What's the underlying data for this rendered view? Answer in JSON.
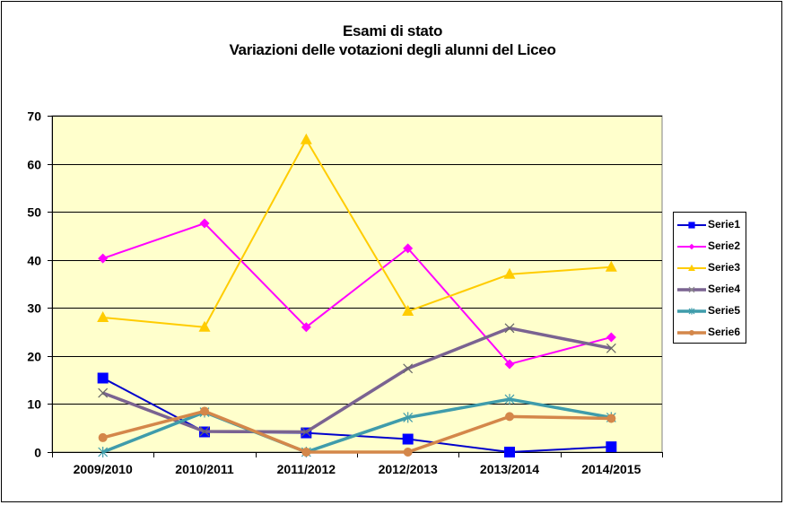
{
  "chart": {
    "title_line1": "Esami di stato",
    "title_line2": "Variazioni delle votazioni degli alunni del Liceo",
    "plot_background": "#FFFFCC",
    "y_ticks": [
      "0",
      "10",
      "20",
      "30",
      "40",
      "50",
      "60",
      "70"
    ],
    "x_ticks": [
      "2009/2010",
      "2010/2011",
      "2011/2012",
      "2012/2013",
      "2013/2014",
      "2014/2015"
    ]
  },
  "legend": {
    "items": [
      {
        "label": "Serie1",
        "color": "#0000FF"
      },
      {
        "label": "Serie2",
        "color": "#FF00FF"
      },
      {
        "label": "Serie3",
        "color": "#FFCC00"
      },
      {
        "label": "Serie4",
        "color": "#7A6391"
      },
      {
        "label": "Serie5",
        "color": "#3F9CAB"
      },
      {
        "label": "Serie6",
        "color": "#D4874A"
      }
    ]
  },
  "chart_data": {
    "type": "line",
    "title": "Esami di stato\nVariazioni delle votazioni degli alunni del Liceo",
    "xlabel": "",
    "ylabel": "",
    "categories": [
      "2009/2010",
      "2010/2011",
      "2011/2012",
      "2012/2013",
      "2013/2014",
      "2014/2015"
    ],
    "ylim": [
      0,
      70
    ],
    "yticks": [
      0,
      10,
      20,
      30,
      40,
      50,
      60,
      70
    ],
    "grid": "horizontal major gridlines",
    "legend_position": "right",
    "series": [
      {
        "name": "Serie1",
        "color": "#0000FF",
        "marker": "square",
        "values": [
          15.4,
          4.2,
          4.0,
          2.7,
          0,
          1.1
        ]
      },
      {
        "name": "Serie2",
        "color": "#FF00FF",
        "marker": "diamond",
        "values": [
          40.3,
          47.6,
          26.0,
          42.4,
          18.3,
          23.9
        ]
      },
      {
        "name": "Serie3",
        "color": "#FFCC00",
        "marker": "triangle",
        "values": [
          28.0,
          26.0,
          65.0,
          29.3,
          37.0,
          38.5
        ]
      },
      {
        "name": "Serie4",
        "color": "#7A6391",
        "marker": "x",
        "values": [
          12.3,
          4.3,
          4.2,
          17.4,
          25.8,
          21.6
        ]
      },
      {
        "name": "Serie5",
        "color": "#3F9CAB",
        "marker": "star",
        "values": [
          0,
          8.3,
          0,
          7.2,
          11.0,
          7.2
        ]
      },
      {
        "name": "Serie6",
        "color": "#D4874A",
        "marker": "circle",
        "values": [
          3.0,
          8.5,
          0,
          0,
          7.4,
          7.0
        ]
      }
    ]
  }
}
